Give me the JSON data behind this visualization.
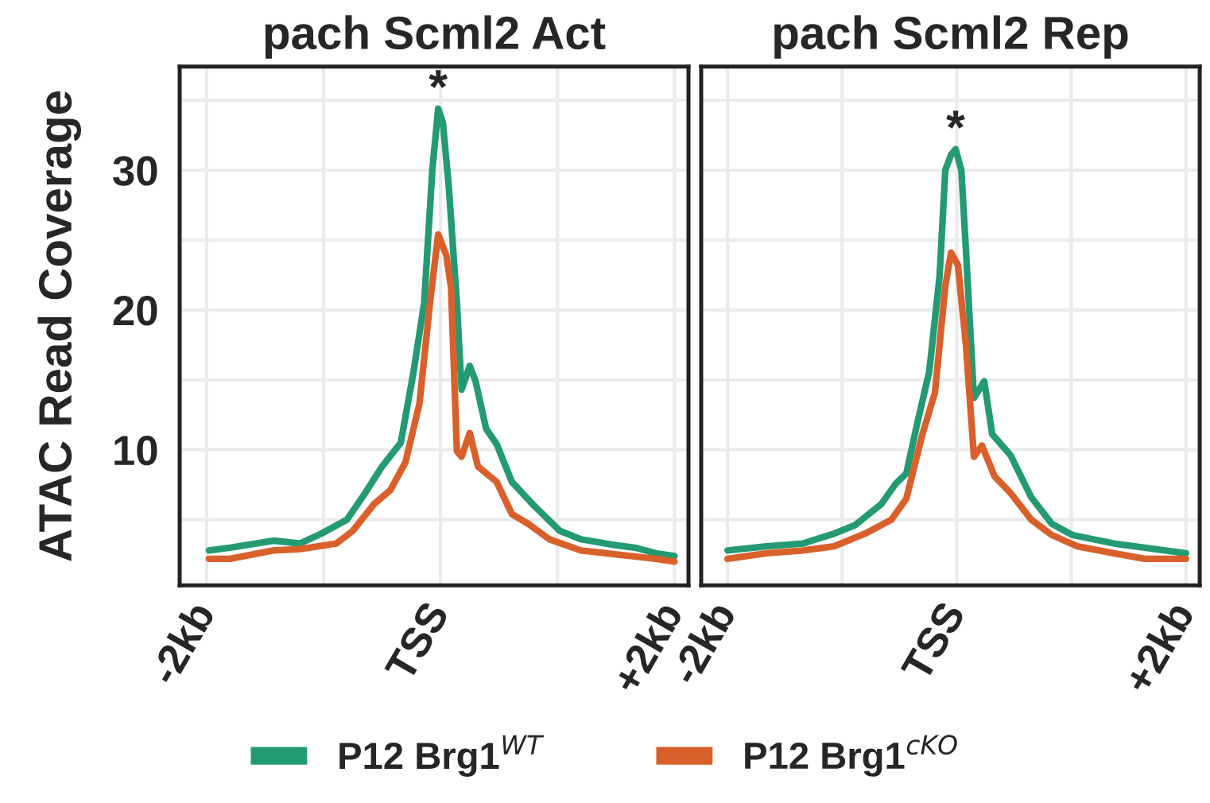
{
  "chart_data": [
    {
      "type": "line",
      "title": "pach Scml2 Act",
      "ylabel": "ATAC Read Coverage",
      "xlim": [
        -2.23,
        2.12
      ],
      "ylim": [
        0.3,
        37.4
      ],
      "xticks": [
        {
          "value": -2,
          "label": "-2kb"
        },
        {
          "value": 0,
          "label": "TSS"
        },
        {
          "value": 2,
          "label": "+2kb"
        }
      ],
      "yticks": [
        10,
        20,
        30
      ],
      "grid": true,
      "legend": "bottom",
      "marker": "none",
      "line_style": "solid",
      "annotations": [
        {
          "text": "*",
          "x": -0.02,
          "y": 34.4
        }
      ],
      "series": [
        {
          "name": "P12 Brg1$^{WT}$",
          "color": "#239a74",
          "x": [
            -1.98,
            -1.8,
            -1.43,
            -1.2,
            -1.02,
            -0.8,
            -0.66,
            -0.5,
            -0.34,
            -0.23,
            -0.14,
            -0.07,
            -0.02,
            0.02,
            0.07,
            0.14,
            0.18,
            0.25,
            0.3,
            0.39,
            0.48,
            0.61,
            0.8,
            1.02,
            1.2,
            1.48,
            1.66,
            1.84,
            2.0
          ],
          "values": [
            2.8,
            3.0,
            3.5,
            3.3,
            4.0,
            5.0,
            6.7,
            8.8,
            10.5,
            15.6,
            20.5,
            30.0,
            34.4,
            33.4,
            28.9,
            20.5,
            14.3,
            16.0,
            14.9,
            11.5,
            10.4,
            7.7,
            6.0,
            4.2,
            3.6,
            3.2,
            3.0,
            2.6,
            2.4
          ]
        },
        {
          "name": "P12 Brg1$^{cKO}$",
          "color": "#d9602a",
          "x": [
            -1.98,
            -1.8,
            -1.43,
            -1.2,
            -0.89,
            -0.75,
            -0.57,
            -0.43,
            -0.3,
            -0.18,
            -0.09,
            -0.02,
            0.05,
            0.09,
            0.14,
            0.18,
            0.25,
            0.32,
            0.48,
            0.61,
            0.75,
            0.93,
            1.2,
            1.52,
            1.84,
            2.0
          ],
          "values": [
            2.2,
            2.2,
            2.8,
            2.9,
            3.3,
            4.2,
            6.1,
            7.1,
            9.1,
            13.3,
            20.5,
            25.4,
            23.9,
            21.6,
            9.9,
            9.5,
            11.2,
            8.8,
            7.7,
            5.4,
            4.7,
            3.6,
            2.8,
            2.5,
            2.2,
            2.0
          ]
        }
      ]
    },
    {
      "type": "line",
      "title": "pach Scml2 Rep",
      "xlim": [
        -2.23,
        2.12
      ],
      "ylim": [
        0.3,
        37.4
      ],
      "tick_labels": "x",
      "xticks": [
        {
          "value": -2,
          "label": "-2kb"
        },
        {
          "value": 0,
          "label": "TSS"
        },
        {
          "value": 2,
          "label": "+2kb"
        }
      ],
      "yticks": [
        10,
        20,
        30
      ],
      "grid": true,
      "marker": "none",
      "line_style": "solid",
      "annotations": [
        {
          "text": "*",
          "x": -0.01,
          "y": 31.5
        }
      ],
      "series": [
        {
          "color": "#239a74",
          "x": [
            -2.0,
            -1.66,
            -1.34,
            -1.07,
            -0.89,
            -0.66,
            -0.53,
            -0.44,
            -0.35,
            -0.24,
            -0.15,
            -0.1,
            -0.05,
            -0.01,
            0.04,
            0.08,
            0.15,
            0.24,
            0.31,
            0.47,
            0.65,
            0.83,
            1.01,
            1.37,
            1.64,
            2.0
          ],
          "values": [
            2.8,
            3.1,
            3.3,
            4.0,
            4.6,
            6.1,
            7.6,
            8.3,
            11.7,
            15.6,
            22.4,
            30.0,
            31.1,
            31.5,
            30.0,
            24.3,
            13.7,
            14.9,
            11.1,
            9.6,
            6.6,
            4.7,
            3.9,
            3.3,
            3.0,
            2.6
          ]
        },
        {
          "color": "#d9602a",
          "x": [
            -2.0,
            -1.66,
            -1.34,
            -1.07,
            -0.8,
            -0.57,
            -0.44,
            -0.3,
            -0.19,
            -0.1,
            -0.05,
            0.01,
            0.08,
            0.15,
            0.22,
            0.33,
            0.47,
            0.65,
            0.83,
            1.05,
            1.37,
            1.64,
            2.0
          ],
          "values": [
            2.2,
            2.6,
            2.8,
            3.1,
            4.0,
            5.0,
            6.5,
            11.1,
            14.1,
            21.7,
            24.1,
            23.2,
            17.5,
            9.5,
            10.3,
            8.1,
            6.9,
            5.0,
            3.9,
            3.1,
            2.6,
            2.2,
            2.2
          ]
        }
      ]
    }
  ]
}
